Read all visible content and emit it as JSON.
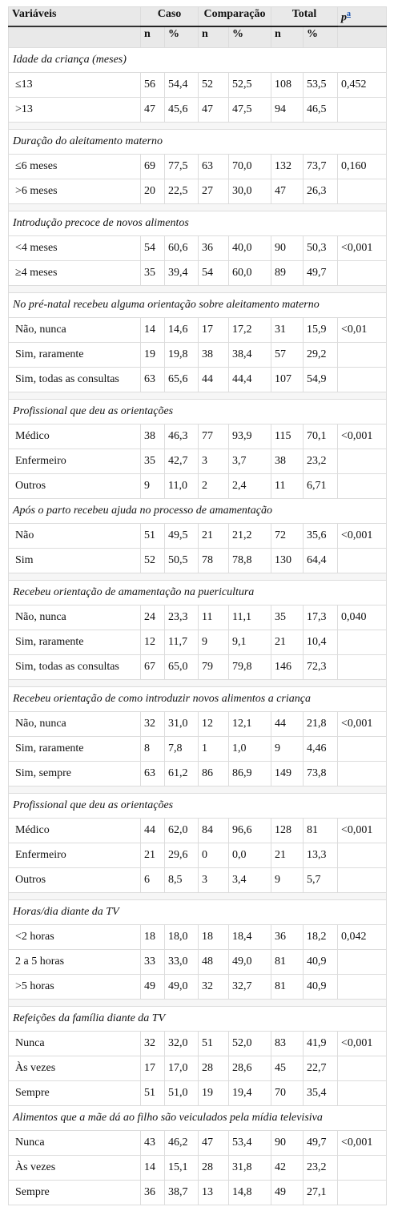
{
  "table": {
    "header": {
      "variables": "Variáveis",
      "groups": [
        "Caso",
        "Comparação",
        "Total"
      ],
      "p": "p",
      "p_note": "a",
      "subheaders": [
        "n",
        "%",
        "n",
        "%",
        "n",
        "%"
      ]
    },
    "sections": [
      {
        "title": "Idade da criança (meses)",
        "rows": [
          [
            "≤13",
            "56",
            "54,4",
            "52",
            "52,5",
            "108",
            "53,5",
            "0,452"
          ],
          [
            ">13",
            "47",
            "45,6",
            "47",
            "47,5",
            "94",
            "46,5"
          ]
        ]
      },
      {
        "title": "Duração do aleitamento materno",
        "rows": [
          [
            "≤6 meses",
            "69",
            "77,5",
            "63",
            "70,0",
            "132",
            "73,7",
            "0,160"
          ],
          [
            ">6 meses",
            "20",
            "22,5",
            "27",
            "30,0",
            "47",
            "26,3"
          ]
        ]
      },
      {
        "title": "Introdução precoce de novos alimentos",
        "rows": [
          [
            "<4 meses",
            "54",
            "60,6",
            "36",
            "40,0",
            "90",
            "50,3",
            "<0,001"
          ],
          [
            "≥4 meses",
            "35",
            "39,4",
            "54",
            "60,0",
            "89",
            "49,7"
          ]
        ]
      },
      {
        "title": "No pré-natal recebeu alguma orientação sobre aleitamento materno",
        "rows": [
          [
            "Não, nunca",
            "14",
            "14,6",
            "17",
            "17,2",
            "31",
            "15,9",
            "<0,01"
          ],
          [
            "Sim, raramente",
            "19",
            "19,8",
            "38",
            "38,4",
            "57",
            "29,2"
          ],
          [
            "Sim, todas as consultas",
            "63",
            "65,6",
            "44",
            "44,4",
            "107",
            "54,9"
          ]
        ]
      },
      {
        "title": "Profissional que deu as orientações",
        "rows": [
          [
            "Médico",
            "38",
            "46,3",
            "77",
            "93,9",
            "115",
            "70,1",
            "<0,001"
          ],
          [
            "Enfermeiro",
            "35",
            "42,7",
            "3",
            "3,7",
            "38",
            "23,2"
          ],
          [
            "Outros",
            "9",
            "11,0",
            "2",
            "2,4",
            "11",
            "6,71"
          ]
        ]
      },
      {
        "title": "Após o parto recebeu ajuda no processo de amamentação",
        "rows": [
          [
            "Não",
            "51",
            "49,5",
            "21",
            "21,2",
            "72",
            "35,6",
            "<0,001"
          ],
          [
            "Sim",
            "52",
            "50,5",
            "78",
            "78,8",
            "130",
            "64,4"
          ]
        ]
      },
      {
        "title": "Recebeu orientação de amamentação na puericultura",
        "rows": [
          [
            "Não, nunca",
            "24",
            "23,3",
            "11",
            "11,1",
            "35",
            "17,3",
            "0,040"
          ],
          [
            "Sim, raramente",
            "12",
            "11,7",
            "9",
            "9,1",
            "21",
            "10,4"
          ],
          [
            "Sim, todas as consultas",
            "67",
            "65,0",
            "79",
            "79,8",
            "146",
            "72,3"
          ]
        ]
      },
      {
        "title": "Recebeu orientação de como introduzir novos alimentos a criança",
        "rows": [
          [
            "Não, nunca",
            "32",
            "31,0",
            "12",
            "12,1",
            "44",
            "21,8",
            "<0,001"
          ],
          [
            "Sim, raramente",
            "8",
            "7,8",
            "1",
            "1,0",
            "9",
            "4,46"
          ],
          [
            "Sim, sempre",
            "63",
            "61,2",
            "86",
            "86,9",
            "149",
            "73,8"
          ]
        ]
      },
      {
        "title": "Profissional que deu as orientações",
        "rows": [
          [
            "Médico",
            "44",
            "62,0",
            "84",
            "96,6",
            "128",
            "81",
            "<0,001"
          ],
          [
            "Enfermeiro",
            "21",
            "29,6",
            "0",
            "0,0",
            "21",
            "13,3"
          ],
          [
            "Outros",
            "6",
            "8,5",
            "3",
            "3,4",
            "9",
            "5,7"
          ]
        ]
      },
      {
        "title": "Horas/dia diante da TV",
        "rows": [
          [
            "<2 horas",
            "18",
            "18,0",
            "18",
            "18,4",
            "36",
            "18,2",
            "0,042"
          ],
          [
            "2 a 5 horas",
            "33",
            "33,0",
            "48",
            "49,0",
            "81",
            "40,9"
          ],
          [
            ">5 horas",
            "49",
            "49,0",
            "32",
            "32,7",
            "81",
            "40,9"
          ]
        ]
      },
      {
        "title": "Refeições da família diante da TV",
        "rows": [
          [
            "Nunca",
            "32",
            "32,0",
            "51",
            "52,0",
            "83",
            "41,9",
            "<0,001"
          ],
          [
            "Às vezes",
            "17",
            "17,0",
            "28",
            "28,6",
            "45",
            "22,7"
          ],
          [
            "Sempre",
            "51",
            "51,0",
            "19",
            "19,4",
            "70",
            "35,4"
          ]
        ]
      },
      {
        "title": "Alimentos que a mãe dá ao filho são veiculados pela mídia televisiva",
        "rows": [
          [
            "Nunca",
            "43",
            "46,2",
            "47",
            "53,4",
            "90",
            "49,7",
            "<0,001"
          ],
          [
            "Às vezes",
            "14",
            "15,1",
            "28",
            "31,8",
            "42",
            "23,2"
          ],
          [
            "Sempre",
            "36",
            "38,7",
            "13",
            "14,8",
            "49",
            "27,1"
          ]
        ]
      }
    ]
  }
}
